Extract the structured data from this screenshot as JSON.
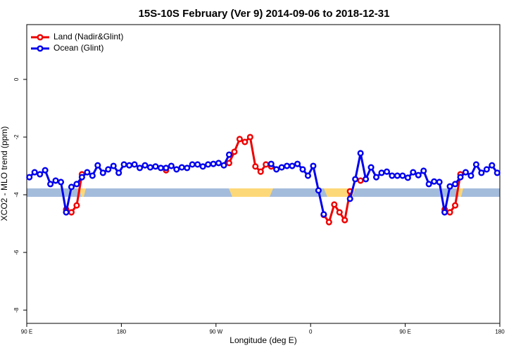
{
  "chart_data": {
    "type": "line",
    "title": "15S-10S February (Ver 9)   2014-09-06 to 2018-12-31",
    "x_label": "Longitude (deg E)",
    "y_label": "XCO2 - MLO trend (ppm)",
    "x": [
      92.5,
      97.5,
      102.5,
      107.5,
      112.5,
      117.5,
      122.5,
      127.5,
      132.5,
      137.5,
      142.5,
      147.5,
      152.5,
      157.5,
      162.5,
      167.5,
      172.5,
      177.5,
      182.5,
      187.5,
      192.5,
      197.5,
      202.5,
      207.5,
      212.5,
      217.5,
      222.5,
      227.5,
      232.5,
      237.5,
      242.5,
      247.5,
      252.5,
      257.5,
      262.5,
      267.5,
      272.5,
      277.5,
      282.5,
      287.5,
      292.5,
      297.5,
      302.5,
      307.5,
      312.5,
      317.5,
      322.5,
      327.5,
      332.5,
      337.5,
      342.5,
      347.5,
      352.5,
      357.5,
      362.5,
      367.5,
      372.5,
      377.5,
      382.5,
      387.5,
      392.5,
      397.5,
      402.5,
      407.5,
      412.5,
      417.5,
      422.5,
      427.5,
      432.5,
      437.5,
      442.5,
      447.5,
      452.5,
      457.5,
      462.5,
      467.5,
      472.5,
      477.5,
      482.5,
      487.5,
      492.5,
      497.5,
      502.5,
      507.5,
      512.5,
      517.5,
      522.5,
      527.5,
      532.5,
      537.5
    ],
    "series": [
      {
        "name": "Land (Nadir&Glint)",
        "color": "#ee0000",
        "values": [
          null,
          null,
          null,
          null,
          null,
          null,
          null,
          -4.51,
          -4.61,
          -4.37,
          -3.29,
          null,
          null,
          null,
          null,
          null,
          null,
          null,
          null,
          null,
          null,
          null,
          null,
          null,
          null,
          null,
          -3.15,
          null,
          null,
          null,
          null,
          null,
          null,
          null,
          null,
          null,
          null,
          null,
          -2.9,
          -2.51,
          -2.07,
          -2.17,
          -2.0,
          -3.02,
          -3.2,
          -2.95,
          -3.02,
          null,
          null,
          null,
          null,
          null,
          null,
          null,
          null,
          null,
          -4.7,
          -4.95,
          -4.34,
          -4.61,
          -4.88,
          -3.88,
          null,
          -3.51,
          null,
          null,
          null,
          null,
          null,
          null,
          null,
          null,
          null,
          null,
          null,
          null,
          null,
          null,
          null,
          -4.51,
          -4.61,
          -4.37,
          -3.29,
          null,
          null,
          null,
          null,
          null,
          null,
          null
        ]
      },
      {
        "name": "Ocean (Glint)",
        "color": "#0000ee",
        "values": [
          -3.39,
          -3.22,
          -3.29,
          -3.15,
          -3.63,
          -3.51,
          -3.56,
          -4.61,
          -3.73,
          -3.63,
          -3.39,
          -3.22,
          -3.34,
          -2.98,
          -3.24,
          -3.12,
          -3.0,
          -3.24,
          -2.95,
          -2.98,
          -2.95,
          -3.07,
          -2.98,
          -3.05,
          -3.02,
          -3.07,
          -3.07,
          -3.0,
          -3.12,
          -3.05,
          -3.07,
          -2.95,
          -2.95,
          -3.02,
          -2.95,
          -2.93,
          -2.9,
          -2.98,
          -2.61,
          null,
          null,
          null,
          null,
          null,
          null,
          null,
          -2.93,
          -3.12,
          -3.05,
          -3.0,
          -3.0,
          -2.93,
          -3.12,
          -3.34,
          -3.0,
          -3.85,
          -4.68,
          null,
          null,
          null,
          null,
          -4.14,
          -3.46,
          -2.56,
          -3.46,
          -3.05,
          -3.39,
          -3.24,
          -3.2,
          -3.34,
          -3.34,
          -3.34,
          -3.41,
          -3.22,
          -3.32,
          -3.17,
          -3.63,
          -3.54,
          -3.56,
          -4.61,
          -3.71,
          -3.63,
          -3.39,
          -3.22,
          -3.34,
          -2.95,
          -3.24,
          -3.12,
          -2.98,
          -3.24
        ]
      }
    ],
    "xlim": [
      90,
      540
    ],
    "xticks": [
      {
        "value": 90,
        "label": "90 E"
      },
      180,
      {
        "value": 270,
        "label": "90 W"
      },
      {
        "value": 360,
        "label": "0"
      },
      {
        "value": 450,
        "label": "90 E"
      },
      {
        "value": 540,
        "label": "180"
      }
    ],
    "ylim": [
      -8.46,
      1.9
    ],
    "yticks": [
      -8,
      -6,
      -4,
      -2,
      0
    ],
    "legend": "top-left"
  }
}
